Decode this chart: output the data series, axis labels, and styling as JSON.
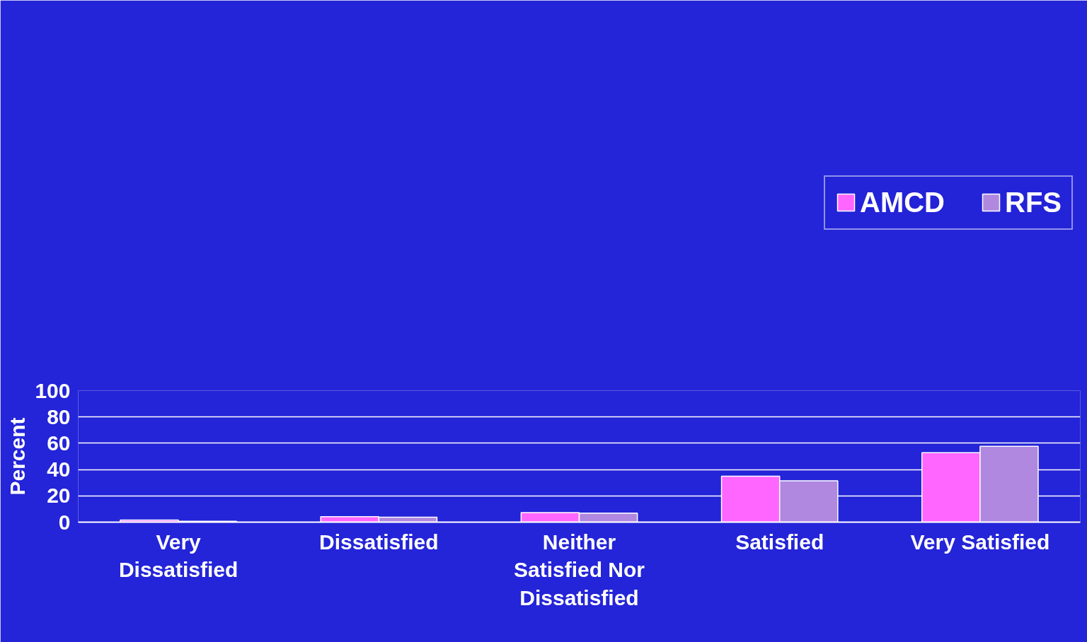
{
  "chart_data": {
    "type": "bar",
    "ylabel": "Percent",
    "categories": [
      "Very Dissatisfied",
      "Dissatisfied",
      "Neither Satisfied Nor Dissatisfied",
      "Satisfied",
      "Very Satisfied"
    ],
    "series": [
      {
        "name": "AMCD",
        "color": "#ff66ff",
        "values": [
          1.6,
          4.1,
          7.3,
          35.0,
          52.8
        ]
      },
      {
        "name": "RFS",
        "color": "#b088e0",
        "values": [
          0.7,
          3.7,
          6.9,
          31.4,
          57.7
        ]
      }
    ],
    "ylim": [
      0,
      100
    ],
    "yticks": [
      0,
      20,
      40,
      60,
      80,
      100
    ],
    "grid": "y",
    "legend": "top right"
  }
}
